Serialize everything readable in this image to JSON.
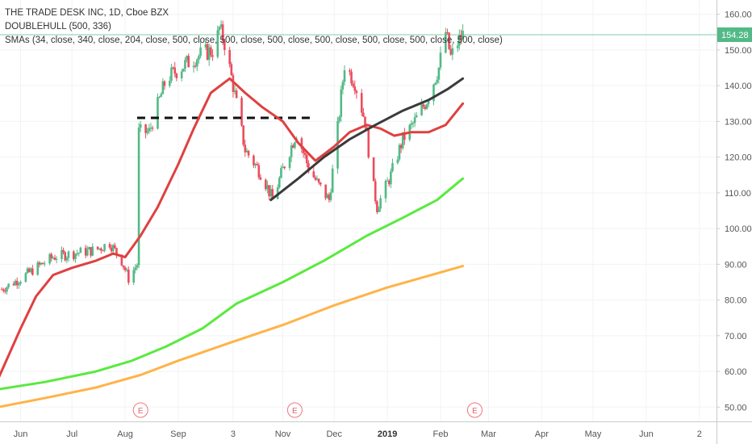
{
  "legend": {
    "symbol_line": "THE TRADE DESK INC, 1D, Cboe BZX",
    "indicator_line": "DOUBLEHULL (500, 336)",
    "sma_line": "SMAs (34, close, 340, close, 204, close, 500, close, 500, close, 500, close, 500, close, 500, close, 500, close, 500, close)"
  },
  "colors": {
    "up": "#53b987",
    "down": "#eb4d5c",
    "sma_red": "#e04040",
    "sma_black": "#3a3a3a",
    "sma_green": "#59ea3f",
    "sma_orange": "#ffb347",
    "price_line": "#53b987",
    "earnings": "#f0757d"
  },
  "chart_data": {
    "type": "line",
    "title": "THE TRADE DESK INC, 1D, Cboe BZX",
    "y_ticks": [
      50,
      60,
      70,
      80,
      90,
      100,
      110,
      120,
      130,
      140,
      150,
      160
    ],
    "ylim": [
      46,
      164
    ],
    "y_scale": "linear",
    "x_tick_labels": [
      "Jun",
      "Jul",
      "Aug",
      "Sep",
      "3",
      "Nov",
      "Dec",
      "2019",
      "Feb",
      "Mar",
      "Apr",
      "May",
      "Jun",
      "2"
    ],
    "x_tick_dates": [
      "2018-06-01",
      "2018-07-01",
      "2018-08-01",
      "2018-09-01",
      "2018-10-03",
      "2018-11-01",
      "2018-12-01",
      "2019-01-01",
      "2019-02-01",
      "2019-03-01",
      "2019-04-01",
      "2019-05-01",
      "2019-06-01",
      "2019-07-02"
    ],
    "x_tick_bold": [
      false,
      false,
      false,
      false,
      false,
      false,
      false,
      true,
      false,
      false,
      false,
      false,
      false,
      false
    ],
    "x_range": [
      "2018-05-20",
      "2019-07-12"
    ],
    "last_price": {
      "value": 154.28,
      "label": "154.28"
    },
    "earnings": [
      {
        "date": "2018-08-10",
        "label": "E"
      },
      {
        "date": "2018-11-08",
        "label": "E"
      },
      {
        "date": "2019-02-21",
        "label": "E"
      }
    ],
    "dashed_level": {
      "value": 131,
      "from": "2018-08-08",
      "to": "2018-11-20"
    },
    "candles_summary": [
      [
        "2018-05-21",
        83
      ],
      [
        "2018-06-01",
        86
      ],
      [
        "2018-06-10",
        89
      ],
      [
        "2018-06-20",
        92
      ],
      [
        "2018-07-01",
        93
      ],
      [
        "2018-07-15",
        94
      ],
      [
        "2018-07-23",
        96
      ],
      [
        "2018-07-30",
        91
      ],
      [
        "2018-08-03",
        86
      ],
      [
        "2018-08-08",
        90
      ],
      [
        "2018-08-09",
        127
      ],
      [
        "2018-08-15",
        127
      ],
      [
        "2018-08-25",
        142
      ],
      [
        "2018-09-05",
        146
      ],
      [
        "2018-09-15",
        149
      ],
      [
        "2018-09-22",
        150
      ],
      [
        "2018-09-25",
        156
      ],
      [
        "2018-09-28",
        152
      ],
      [
        "2018-10-03",
        140
      ],
      [
        "2018-10-10",
        122
      ],
      [
        "2018-10-20",
        115
      ],
      [
        "2018-10-26",
        108
      ],
      [
        "2018-11-02",
        118
      ],
      [
        "2018-11-09",
        127
      ],
      [
        "2018-11-16",
        117
      ],
      [
        "2018-11-22",
        112
      ],
      [
        "2018-11-28",
        108
      ],
      [
        "2018-12-03",
        128
      ],
      [
        "2018-12-07",
        146
      ],
      [
        "2018-12-13",
        141
      ],
      [
        "2018-12-19",
        130
      ],
      [
        "2018-12-23",
        114
      ],
      [
        "2018-12-26",
        106
      ],
      [
        "2019-01-03",
        115
      ],
      [
        "2019-01-10",
        125
      ],
      [
        "2019-01-17",
        130
      ],
      [
        "2019-01-24",
        136
      ],
      [
        "2019-01-31",
        145
      ],
      [
        "2019-02-04",
        155
      ],
      [
        "2019-02-07",
        148
      ],
      [
        "2019-02-11",
        152
      ],
      [
        "2019-02-14",
        154.28
      ]
    ],
    "series": [
      {
        "name": "SMA 34",
        "color": "#e04040",
        "x": [
          "2018-05-19",
          "2018-06-01",
          "2018-06-10",
          "2018-06-20",
          "2018-07-01",
          "2018-07-15",
          "2018-07-25",
          "2018-08-01",
          "2018-08-10",
          "2018-08-20",
          "2018-09-01",
          "2018-09-10",
          "2018-09-20",
          "2018-10-01",
          "2018-10-10",
          "2018-10-20",
          "2018-11-01",
          "2018-11-10",
          "2018-11-20",
          "2018-12-01",
          "2018-12-10",
          "2018-12-20",
          "2018-12-28",
          "2019-01-05",
          "2019-01-15",
          "2019-01-25",
          "2019-02-04",
          "2019-02-14"
        ],
        "y": [
          58,
          72,
          81,
          87,
          89,
          91,
          93,
          92,
          98,
          106,
          118,
          128,
          138,
          142,
          138,
          134,
          130,
          124,
          119,
          123,
          127,
          129,
          128,
          126,
          127,
          127,
          129,
          135
        ]
      },
      {
        "name": "SMA 340",
        "color": "#3a3a3a",
        "x": [
          "2018-10-25",
          "2018-11-10",
          "2018-11-25",
          "2018-12-10",
          "2018-12-25",
          "2019-01-10",
          "2019-01-25",
          "2019-02-05",
          "2019-02-14"
        ],
        "y": [
          108,
          114,
          120,
          125,
          129,
          133,
          136,
          139,
          142
        ]
      },
      {
        "name": "SMA 204",
        "color": "#59ea3f",
        "x": [
          "2018-05-19",
          "2018-06-15",
          "2018-07-15",
          "2018-08-05",
          "2018-08-25",
          "2018-09-15",
          "2018-10-05",
          "2018-11-01",
          "2018-11-25",
          "2018-12-20",
          "2019-01-10",
          "2019-01-30",
          "2019-02-14"
        ],
        "y": [
          55,
          57,
          60,
          63,
          67,
          72,
          79,
          85,
          91,
          98,
          103,
          108,
          114
        ]
      },
      {
        "name": "SMA 500",
        "color": "#ffb347",
        "x": [
          "2018-05-19",
          "2018-06-15",
          "2018-07-15",
          "2018-08-10",
          "2018-09-01",
          "2018-10-01",
          "2018-11-01",
          "2018-12-01",
          "2019-01-01",
          "2019-02-14"
        ],
        "y": [
          50,
          52.5,
          55.5,
          59,
          63,
          68,
          73,
          78.5,
          83.5,
          89.5
        ]
      }
    ]
  }
}
